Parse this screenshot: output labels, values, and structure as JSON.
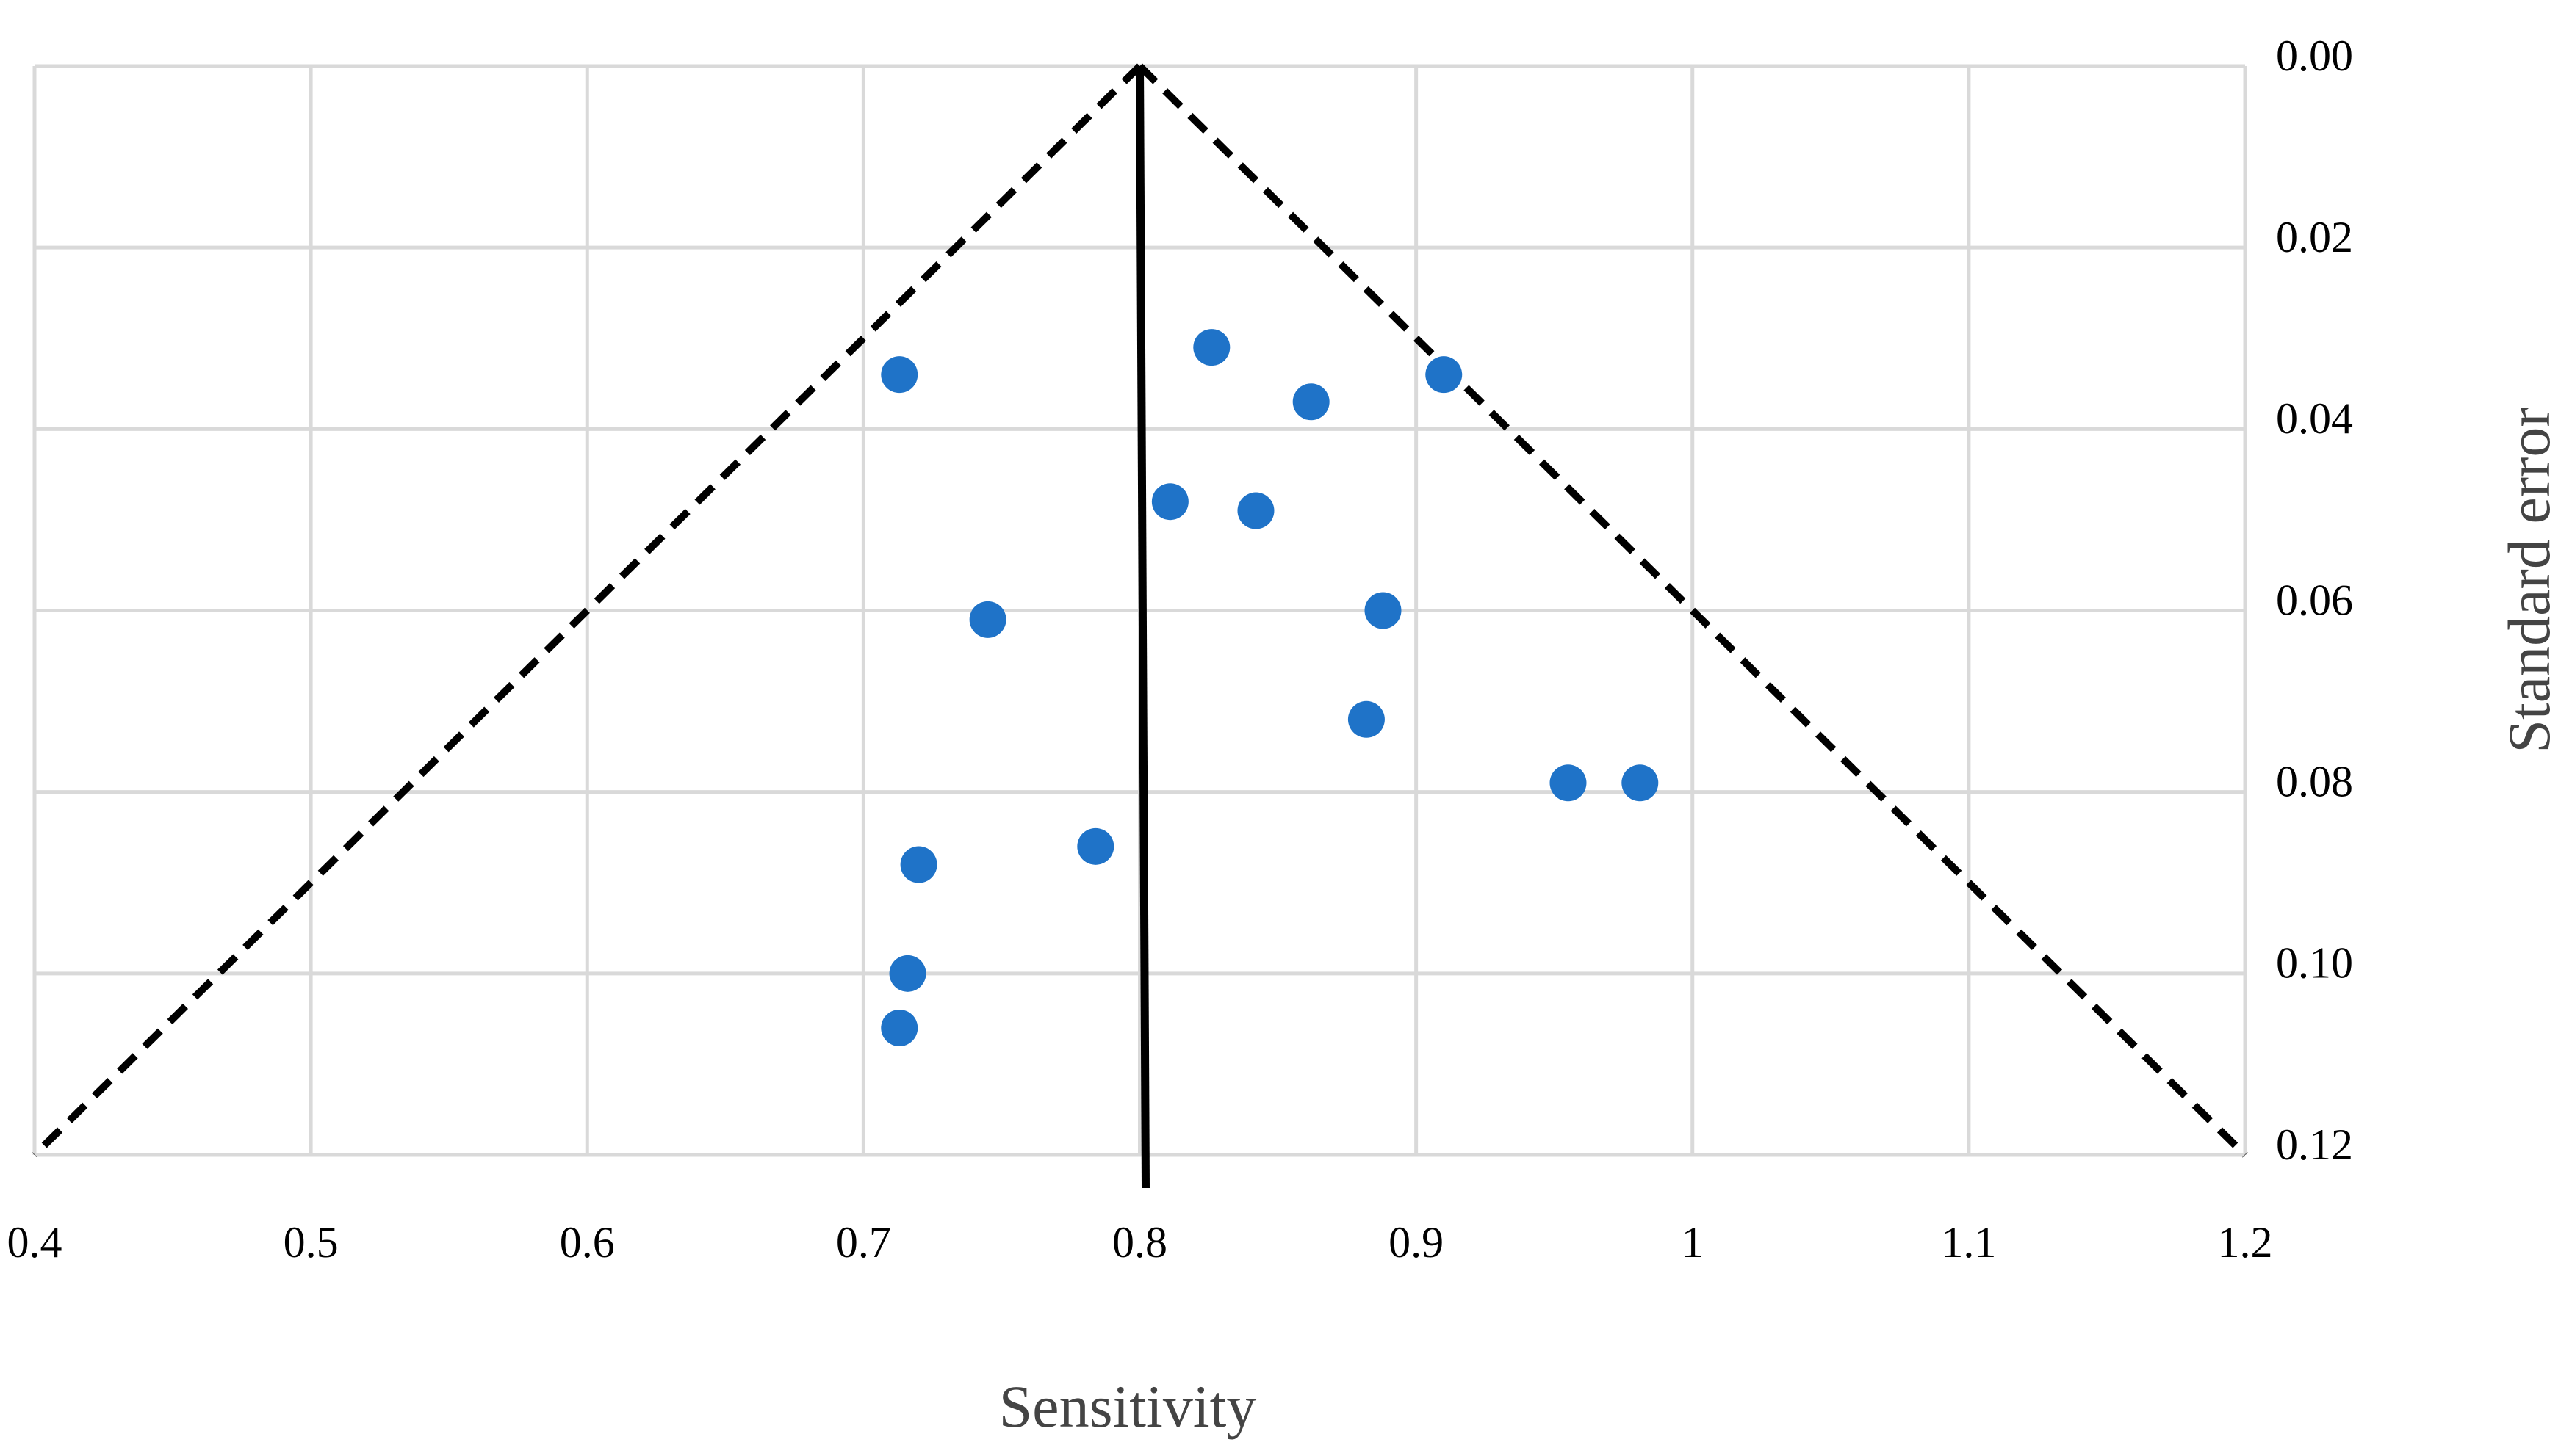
{
  "chart_data": {
    "type": "scatter",
    "title": "",
    "xlabel": "Sensitivity",
    "ylabel": "Standard error",
    "xlim": [
      0.4,
      1.2
    ],
    "ylim": [
      0.0,
      0.12
    ],
    "y_reversed": true,
    "y_axis_side": "right",
    "grid": true,
    "x_ticks": [
      "0.4",
      "0.5",
      "0.6",
      "0.7",
      "0.8",
      "0.9",
      "1",
      "1.1",
      "1.2"
    ],
    "y_ticks": [
      "0.00",
      "0.02",
      "0.04",
      "0.06",
      "0.08",
      "0.10",
      "0.12"
    ],
    "colors": {
      "points": "#1f73c8",
      "grid": "#d9d9d9",
      "lines": "#000000"
    },
    "points": [
      {
        "x": 0.713,
        "y": 0.034
      },
      {
        "x": 0.826,
        "y": 0.031
      },
      {
        "x": 0.862,
        "y": 0.037
      },
      {
        "x": 0.91,
        "y": 0.034
      },
      {
        "x": 0.811,
        "y": 0.048
      },
      {
        "x": 0.842,
        "y": 0.049
      },
      {
        "x": 0.745,
        "y": 0.061
      },
      {
        "x": 0.888,
        "y": 0.06
      },
      {
        "x": 0.882,
        "y": 0.072
      },
      {
        "x": 0.955,
        "y": 0.079
      },
      {
        "x": 0.981,
        "y": 0.079
      },
      {
        "x": 0.784,
        "y": 0.086
      },
      {
        "x": 0.72,
        "y": 0.088
      },
      {
        "x": 0.716,
        "y": 0.1
      },
      {
        "x": 0.713,
        "y": 0.106
      }
    ],
    "funnel": {
      "apex": {
        "x": 0.8,
        "y": 0.0
      },
      "left_base": {
        "x": 0.4,
        "y": 0.12
      },
      "right_base": {
        "x": 1.2,
        "y": 0.12
      },
      "center_line": {
        "x": 0.8
      }
    }
  }
}
